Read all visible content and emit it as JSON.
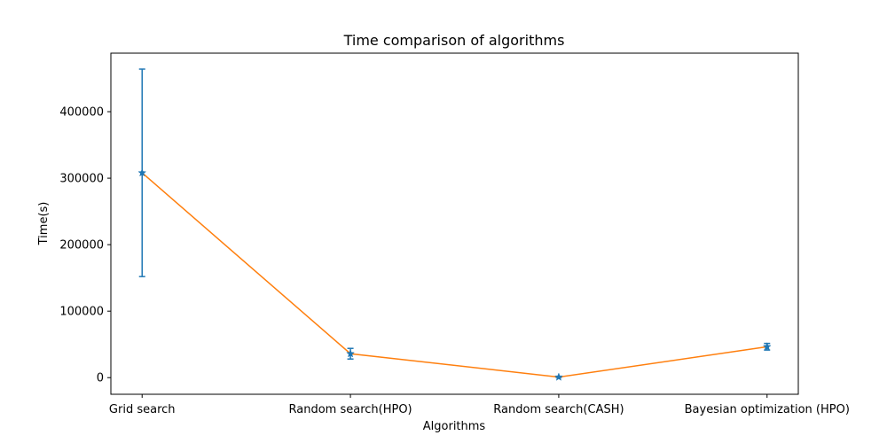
{
  "chart_data": {
    "type": "line",
    "title": "Time comparison of algorithms",
    "xlabel": "Algorithms",
    "ylabel": "Time(s)",
    "categories": [
      "Grid search",
      "Random search(HPO)",
      "Random search(CASH)",
      "Bayesian optimization (HPO)"
    ],
    "values": [
      308000,
      36000,
      800,
      46500
    ],
    "error": [
      156000,
      8000,
      500,
      5000
    ],
    "ylim": [
      -25000,
      488000
    ],
    "yticks": [
      0,
      100000,
      200000,
      300000,
      400000
    ],
    "ytick_labels": [
      "0",
      "100000",
      "200000",
      "300000",
      "400000"
    ],
    "grid": false,
    "colors": {
      "line": "#ff7f0e",
      "errorbar": "#1f77b4",
      "marker": "#1f77b4",
      "axes": "#000000"
    },
    "marker": "star"
  }
}
